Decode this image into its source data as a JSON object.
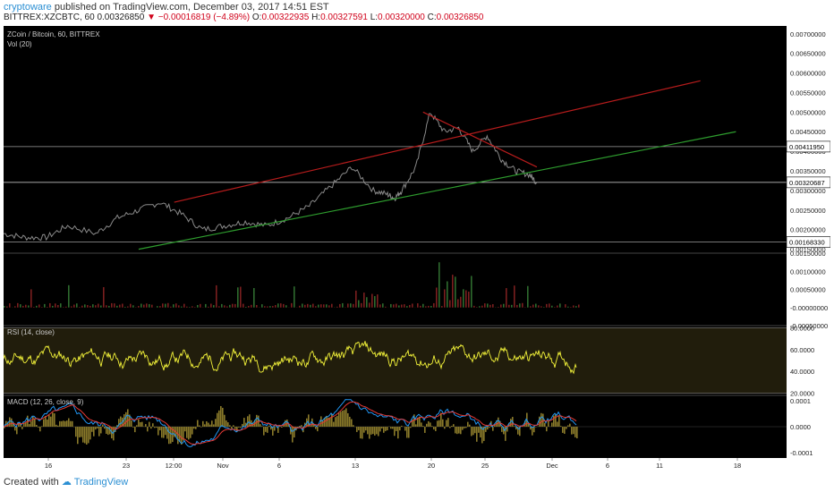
{
  "header": {
    "author": "cryptoware",
    "published": "published on TradingView.com, December 03, 2017 14:51 EST",
    "symbol": "BITTREX:XZCBTC, 60",
    "last": "0.00326850",
    "change": "−0.00016819 (−4.89%)",
    "o_label": "O:",
    "o": "0.00322935",
    "h_label": "H:",
    "h": "0.00327591",
    "l_label": "L:",
    "l": "0.00320000",
    "c_label": "C:",
    "c": "0.00326850"
  },
  "panes": {
    "main_title": "ZCoin / Bitcoin, 60, BITTREX",
    "vol_title": "Vol (20)",
    "rsi_title": "RSI (14, close)",
    "macd_title": "MACD (12, 26, close, 9)"
  },
  "footer": {
    "created": "Created with",
    "brand": "TradingView"
  },
  "colors": {
    "background": "#000000",
    "price": "#8a8a8a",
    "red_channel": "#b71c1c",
    "green_trend": "#2e9d2e",
    "rsi": "#f5f53a",
    "macd": "#2196f3",
    "signal": "#e53935",
    "histogram": "#8a7a2a",
    "axis_text": "#222222"
  },
  "chart_data": [
    {
      "type": "line",
      "pane": "price",
      "title": "ZCoin / Bitcoin, 60, BITTREX",
      "y_ticks": [
        "0.00700000",
        "0.00650000",
        "0.00600000",
        "0.00550000",
        "0.00500000",
        "0.00450000",
        "0.00400000",
        "0.00350000",
        "0.00300000",
        "0.00250000",
        "0.00200000",
        "0.00150000"
      ],
      "ylim": [
        0.0014,
        0.0072
      ],
      "x_ticks": [
        "16",
        "23",
        "12:00",
        "Nov",
        "6",
        "13",
        "20",
        "25",
        "Dec",
        "6",
        "11",
        "18"
      ],
      "price_labels": [
        "0.00411950",
        "0.00320687",
        "0.00168330"
      ],
      "horizontal_lines": [
        0.0041195,
        0.00320687,
        0.0016833
      ],
      "series": [
        {
          "x": [
            0,
            3,
            6,
            9,
            13,
            16,
            19,
            22,
            25,
            28,
            31,
            34,
            37,
            40,
            43,
            46,
            49,
            52,
            54,
            55,
            56,
            58,
            60,
            62,
            64,
            66,
            68,
            70,
            72,
            74,
            75
          ],
          "values": [
            0.0019,
            0.0018,
            0.0018,
            0.0021,
            0.0019,
            0.0023,
            0.0025,
            0.0027,
            0.0024,
            0.002,
            0.0021,
            0.0022,
            0.0021,
            0.0023,
            0.0026,
            0.0031,
            0.0036,
            0.003,
            0.0029,
            0.0028,
            0.003,
            0.0036,
            0.005,
            0.0045,
            0.0046,
            0.004,
            0.0044,
            0.0038,
            0.0035,
            0.0034,
            0.0032
          ]
        }
      ],
      "trendlines": [
        {
          "color": "red_channel",
          "from": [
            24,
            0.0027
          ],
          "to": [
            98,
            0.0058
          ]
        },
        {
          "color": "red_channel",
          "from": [
            59,
            0.005
          ],
          "to": [
            75,
            0.0036
          ]
        },
        {
          "color": "green_trend",
          "from": [
            19,
            0.0015
          ],
          "to": [
            103,
            0.0045
          ]
        }
      ]
    },
    {
      "type": "bar",
      "pane": "volume",
      "title": "Vol (20)",
      "y_ticks": [
        "0.00150000",
        "0.00100000",
        "0.00050000",
        "-0.00000000",
        "-0.00050000"
      ],
      "ylim": [
        -0.0005,
        0.0015
      ]
    },
    {
      "type": "line",
      "pane": "rsi",
      "title": "RSI (14, close)",
      "y_ticks": [
        "80.0000",
        "60.0000",
        "40.0000",
        "20.0000"
      ],
      "ylim": [
        18,
        82
      ],
      "bands": [
        80,
        20
      ]
    },
    {
      "type": "line",
      "pane": "macd",
      "title": "MACD (12, 26, close, 9)",
      "y_ticks": [
        "0.0001",
        "0.0000",
        "-0.0001"
      ],
      "ylim": [
        -0.00012,
        0.00012
      ]
    }
  ]
}
